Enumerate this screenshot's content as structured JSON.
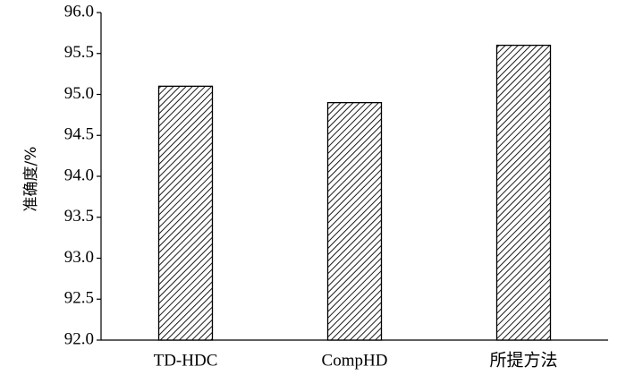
{
  "chart_data": {
    "type": "bar",
    "y_label": "准确度/%",
    "categories": [
      "TD-HDC",
      "CompHD",
      "所提方法"
    ],
    "values": [
      95.1,
      94.9,
      95.6
    ],
    "color": "#000000",
    "ylim": [
      92,
      96
    ],
    "yticks": [
      {
        "value": 92,
        "label": "92.0"
      },
      {
        "value": 92.5,
        "label": "92.5"
      },
      {
        "value": 93,
        "label": "93.0"
      },
      {
        "value": 93.5,
        "label": "93.5"
      },
      {
        "value": 94,
        "label": "94.0"
      },
      {
        "value": 94.5,
        "label": "94.5"
      },
      {
        "value": 95,
        "label": "95.0"
      },
      {
        "value": 95.5,
        "label": "95.5"
      },
      {
        "value": 96,
        "label": "96.0"
      }
    ],
    "grid": false
  }
}
